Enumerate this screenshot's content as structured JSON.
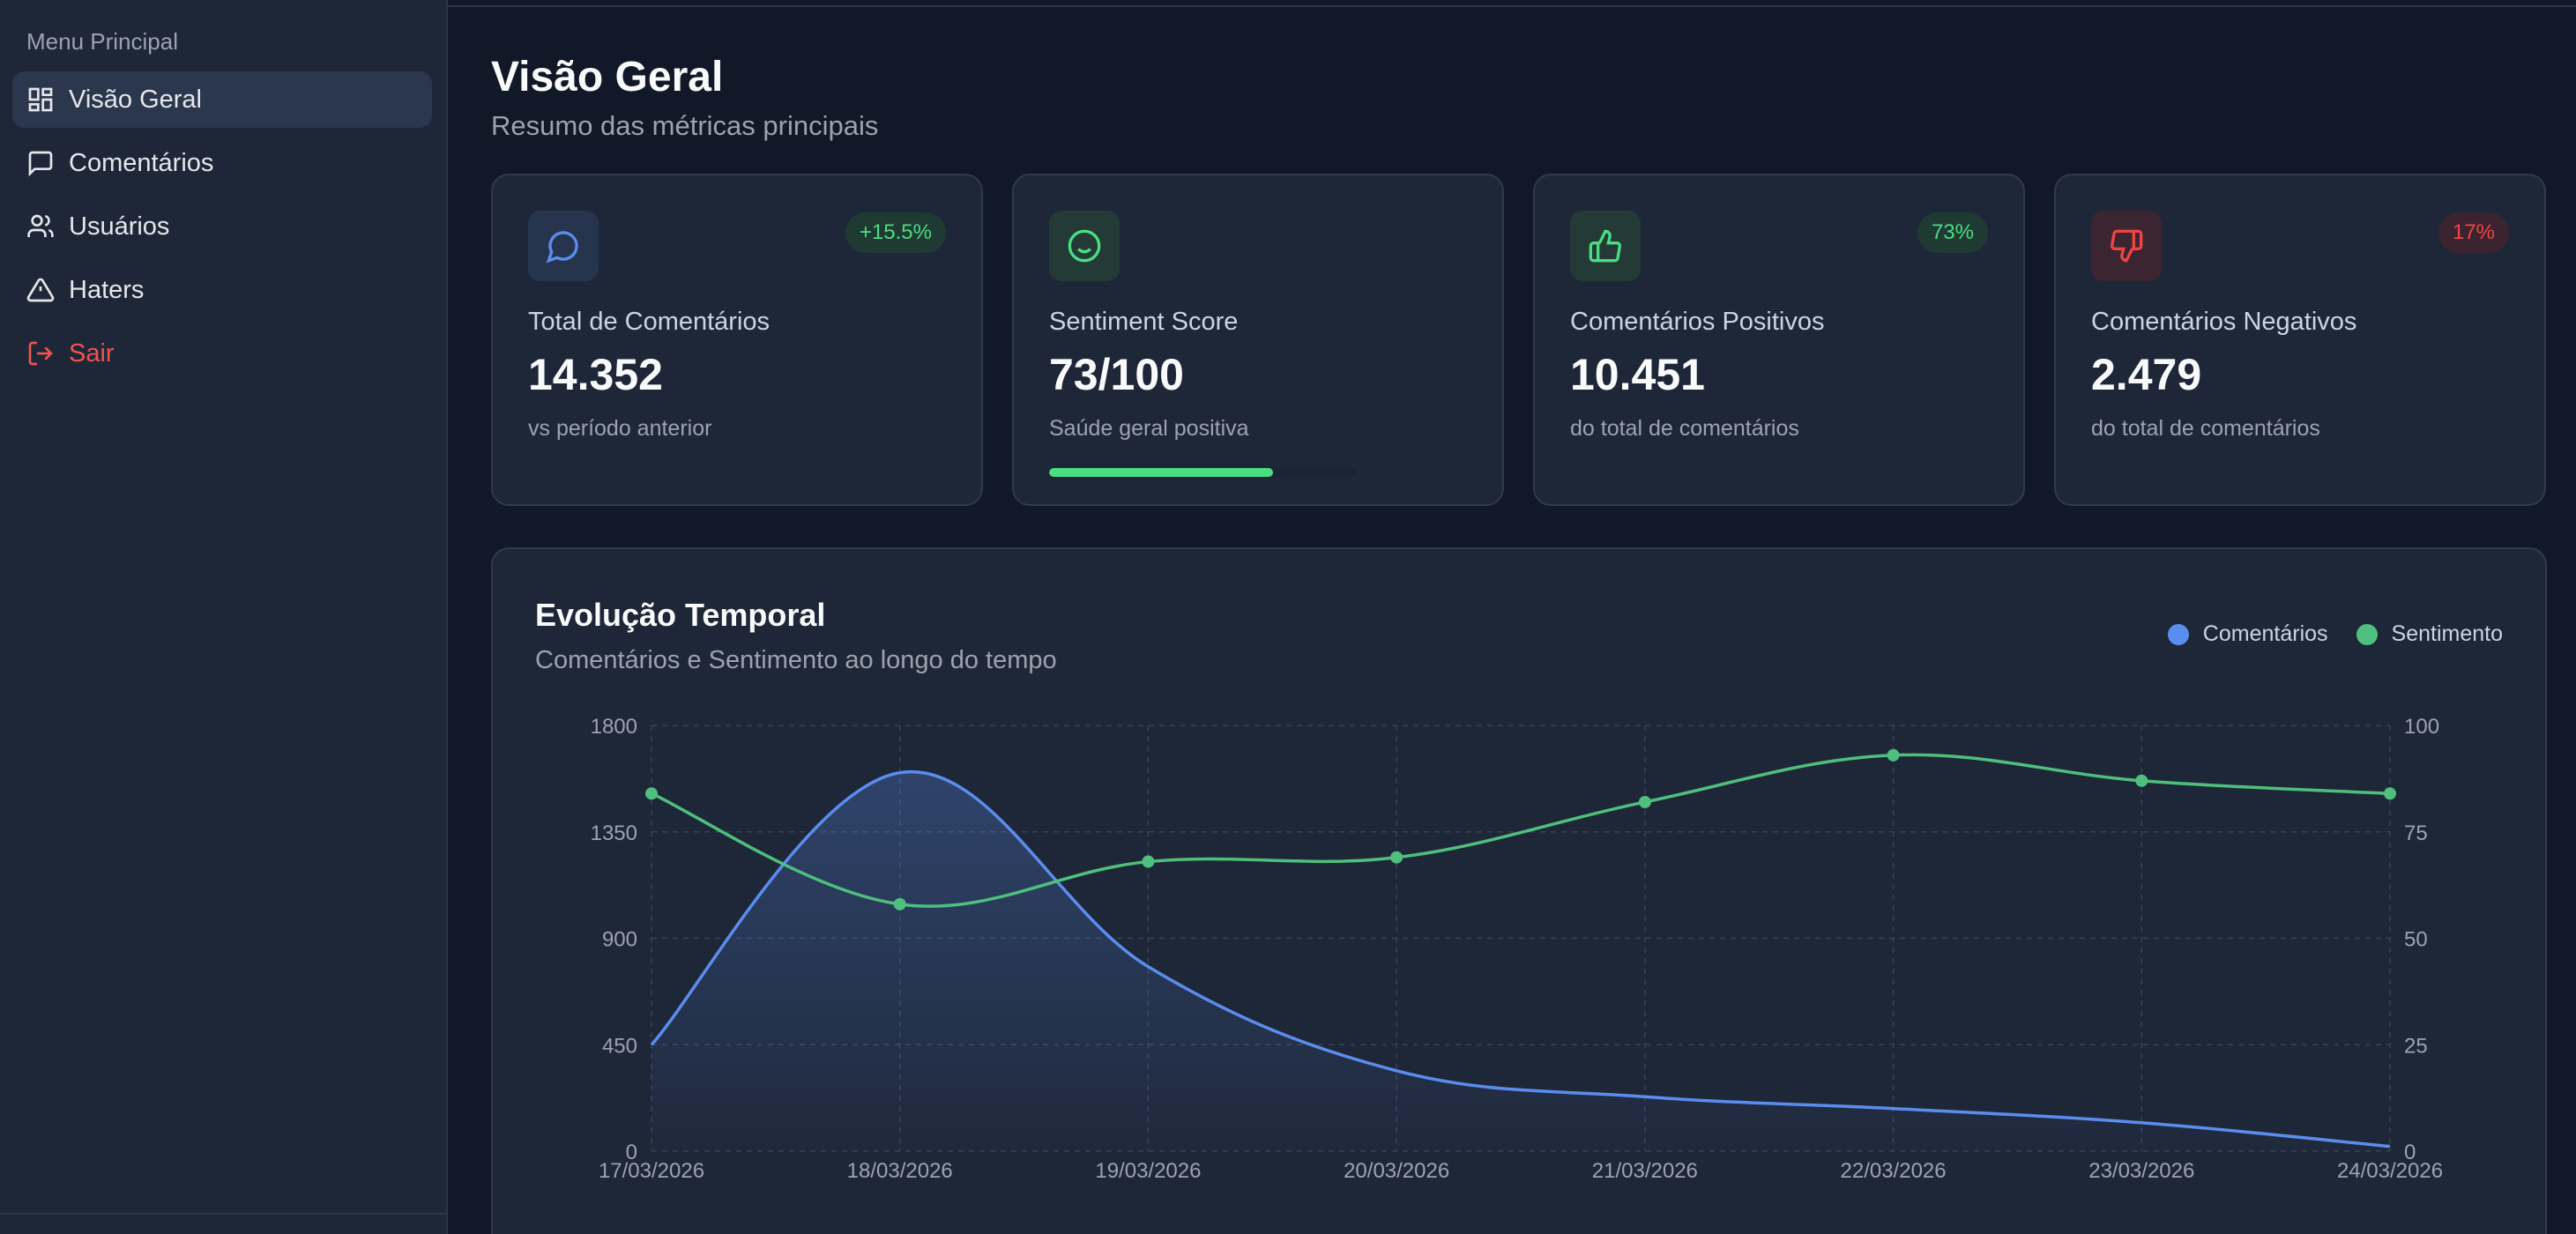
{
  "sidebar": {
    "heading": "Menu Principal",
    "items": [
      {
        "label": "Visão Geral"
      },
      {
        "label": "Comentários"
      },
      {
        "label": "Usuários"
      },
      {
        "label": "Haters"
      },
      {
        "label": "Sair"
      }
    ]
  },
  "header": {
    "title": "Visão Geral",
    "subtitle": "Resumo das métricas principais"
  },
  "cards": [
    {
      "label": "Total de Comentários",
      "value": "14.352",
      "sub": "vs período anterior",
      "badge": "+15.5%",
      "icon": "message-circle-icon",
      "accent": "#60a5fa"
    },
    {
      "label": "Sentiment Score",
      "value": "73/100",
      "sub": "Saúde geral positiva",
      "progress": 0.73,
      "icon": "smile-icon",
      "accent": "#4ade80"
    },
    {
      "label": "Comentários Positivos",
      "value": "10.451",
      "sub": "do total de comentários",
      "badge": "73%",
      "icon": "thumbs-up-icon",
      "accent": "#4ade80"
    },
    {
      "label": "Comentários Negativos",
      "value": "2.479",
      "sub": "do total de comentários",
      "badge": "17%",
      "icon": "thumbs-down-icon",
      "accent": "#ef4444"
    }
  ],
  "colors": {
    "comentarios": "#5b8def",
    "sentimento": "#4fbf7e",
    "negative": "#ef4444",
    "positive": "#4ade80"
  },
  "chart": {
    "title": "Evolução Temporal",
    "subtitle": "Comentários e Sentimento ao longo do tempo",
    "legend": [
      "Comentários",
      "Sentimento"
    ]
  },
  "chart_data": {
    "type": "line",
    "title": "Evolução Temporal",
    "subtitle": "Comentários e Sentimento ao longo do tempo",
    "x": [
      "17/03/2026",
      "18/03/2026",
      "19/03/2026",
      "20/03/2026",
      "21/03/2026",
      "22/03/2026",
      "23/03/2026",
      "24/03/2026"
    ],
    "y_left": {
      "ticks": [
        0,
        450,
        900,
        1350,
        1800
      ],
      "lim": [
        0,
        1800
      ]
    },
    "y_right": {
      "ticks": [
        0,
        25,
        50,
        75,
        100
      ],
      "lim": [
        0,
        100
      ]
    },
    "grid": true,
    "legend_position": "top-right",
    "series": [
      {
        "name": "Comentários",
        "axis": "left",
        "area": true,
        "values": [
          450,
          1600,
          780,
          340,
          230,
          180,
          120,
          20
        ]
      },
      {
        "name": "Sentimento",
        "axis": "right",
        "markers": true,
        "values": [
          84,
          58,
          68,
          69,
          82,
          93,
          87,
          84
        ]
      }
    ]
  }
}
